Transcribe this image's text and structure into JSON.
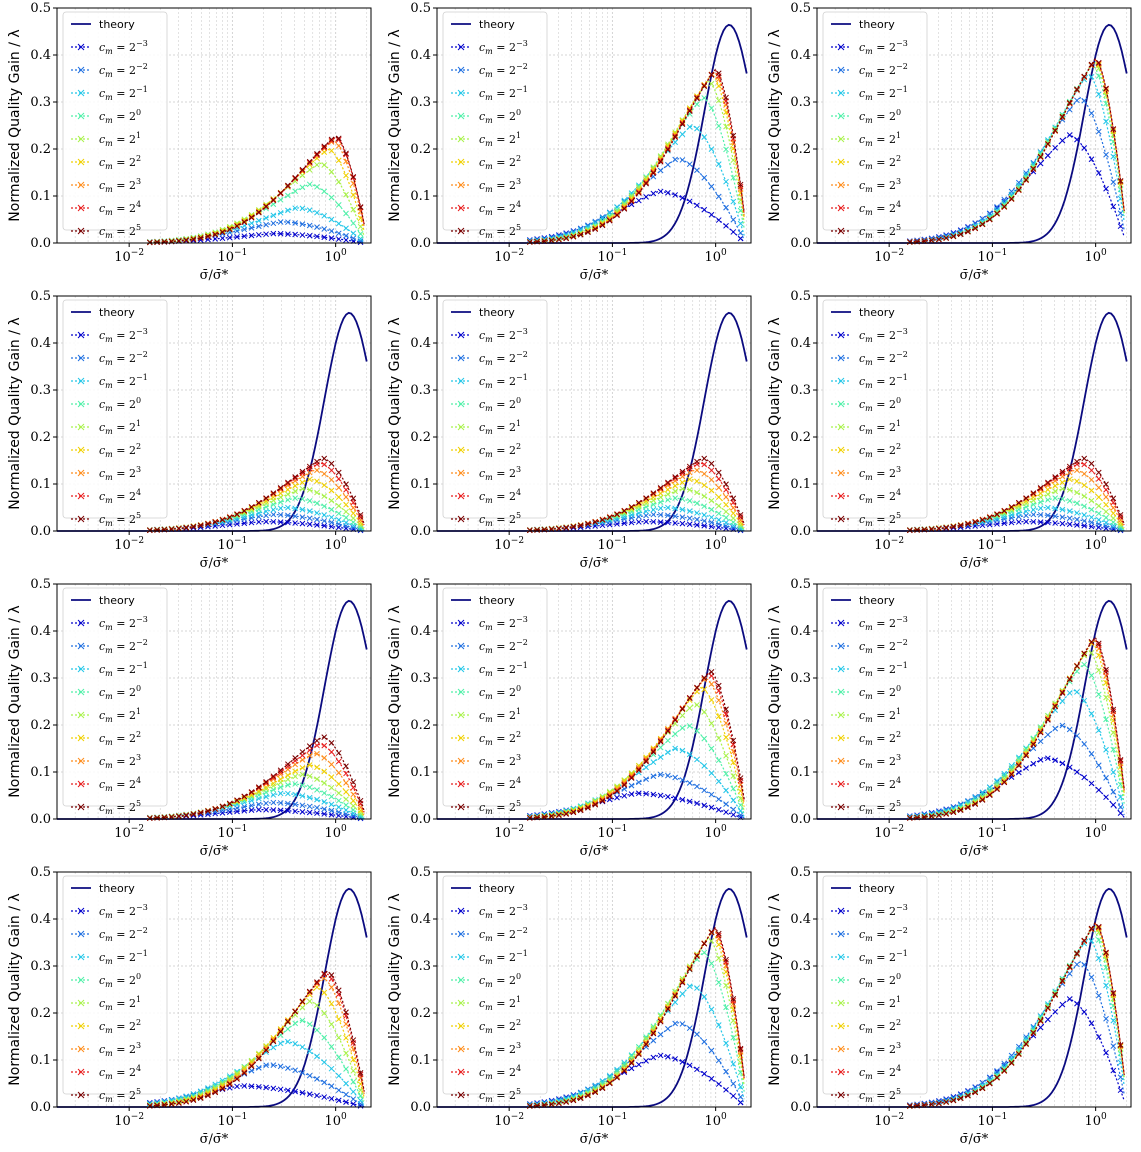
{
  "figure": {
    "ylabel": "Normalized Quality Gain / λ",
    "xlabel": "σ̄/σ̄*",
    "legend": {
      "theory_label": "theory",
      "cm_entries": [
        {
          "base": "c",
          "sub": "m",
          "eq": " = 2",
          "exp": "−3",
          "color": "#0000cc"
        },
        {
          "base": "c",
          "sub": "m",
          "eq": " = 2",
          "exp": "−2",
          "color": "#1f6fe0"
        },
        {
          "base": "c",
          "sub": "m",
          "eq": " = 2",
          "exp": "−1",
          "color": "#22c6e8"
        },
        {
          "base": "c",
          "sub": "m",
          "eq": " = 2",
          "exp": "0",
          "color": "#4ff0a8"
        },
        {
          "base": "c",
          "sub": "m",
          "eq": " = 2",
          "exp": "1",
          "color": "#a8f24a"
        },
        {
          "base": "c",
          "sub": "m",
          "eq": " = 2",
          "exp": "2",
          "color": "#f0d000"
        },
        {
          "base": "c",
          "sub": "m",
          "eq": " = 2",
          "exp": "3",
          "color": "#ff8c1a"
        },
        {
          "base": "c",
          "sub": "m",
          "eq": " = 2",
          "exp": "4",
          "color": "#e81c1c"
        },
        {
          "base": "c",
          "sub": "m",
          "eq": " = 2",
          "exp": "5",
          "color": "#7a0000"
        }
      ],
      "theory_color": "#0b0b80"
    },
    "yticks": [
      "0.0",
      "0.1",
      "0.2",
      "0.3",
      "0.4",
      "0.5"
    ],
    "xticks": [
      {
        "base": "10",
        "exp": "−2"
      },
      {
        "base": "10",
        "exp": "−1"
      },
      {
        "base": "10",
        "exp": "0"
      }
    ]
  },
  "chart_data": [
    {
      "type": "line",
      "xscale": "log",
      "xlim": [
        0.002,
        2.2
      ],
      "ylim": [
        0,
        0.5
      ],
      "grid": true,
      "legend_position": "upper-left",
      "xlabel": "σ̄/σ̄*",
      "ylabel": "Normalized Quality Gain / λ",
      "theory_visible": false,
      "series": [
        {
          "name": "c_m = 2^-3",
          "peak": 0.02,
          "peak_x": 0.25
        },
        {
          "name": "c_m = 2^-2",
          "peak": 0.045,
          "peak_x": 0.3
        },
        {
          "name": "c_m = 2^-1",
          "peak": 0.075,
          "peak_x": 0.42
        },
        {
          "name": "c_m = 2^0",
          "peak": 0.125,
          "peak_x": 0.55
        },
        {
          "name": "c_m = 2^1",
          "peak": 0.17,
          "peak_x": 0.7
        },
        {
          "name": "c_m = 2^2",
          "peak": 0.2,
          "peak_x": 0.85
        },
        {
          "name": "c_m = 2^3",
          "peak": 0.218,
          "peak_x": 0.95
        },
        {
          "name": "c_m = 2^4",
          "peak": 0.225,
          "peak_x": 1.0
        },
        {
          "name": "c_m = 2^5",
          "peak": 0.228,
          "peak_x": 1.0
        }
      ]
    },
    {
      "type": "line",
      "xscale": "log",
      "xlim": [
        0.002,
        2.2
      ],
      "ylim": [
        0,
        0.5
      ],
      "grid": true,
      "legend_position": "upper-left",
      "xlabel": "σ̄/σ̄*",
      "ylabel": "Normalized Quality Gain / λ",
      "theory_visible": true,
      "series": [
        {
          "name": "c_m = 2^-3",
          "peak": 0.11,
          "peak_x": 0.28
        },
        {
          "name": "c_m = 2^-2",
          "peak": 0.18,
          "peak_x": 0.42
        },
        {
          "name": "c_m = 2^-1",
          "peak": 0.25,
          "peak_x": 0.58
        },
        {
          "name": "c_m = 2^0",
          "peak": 0.31,
          "peak_x": 0.75
        },
        {
          "name": "c_m = 2^1",
          "peak": 0.345,
          "peak_x": 0.85
        },
        {
          "name": "c_m = 2^2",
          "peak": 0.36,
          "peak_x": 0.92
        },
        {
          "name": "c_m = 2^3",
          "peak": 0.365,
          "peak_x": 0.96
        },
        {
          "name": "c_m = 2^4",
          "peak": 0.368,
          "peak_x": 0.98
        },
        {
          "name": "c_m = 2^5",
          "peak": 0.37,
          "peak_x": 1.0
        }
      ]
    },
    {
      "type": "line",
      "xscale": "log",
      "xlim": [
        0.002,
        2.2
      ],
      "ylim": [
        0,
        0.5
      ],
      "grid": true,
      "legend_position": "upper-left",
      "xlabel": "σ̄/σ̄*",
      "ylabel": "Normalized Quality Gain / λ",
      "theory_visible": true,
      "series": [
        {
          "name": "c_m = 2^-3",
          "peak": 0.23,
          "peak_x": 0.55
        },
        {
          "name": "c_m = 2^-2",
          "peak": 0.31,
          "peak_x": 0.7
        },
        {
          "name": "c_m = 2^-1",
          "peak": 0.36,
          "peak_x": 0.85
        },
        {
          "name": "c_m = 2^0",
          "peak": 0.38,
          "peak_x": 0.93
        },
        {
          "name": "c_m = 2^1",
          "peak": 0.387,
          "peak_x": 0.97
        },
        {
          "name": "c_m = 2^2",
          "peak": 0.39,
          "peak_x": 0.99
        },
        {
          "name": "c_m = 2^3",
          "peak": 0.391,
          "peak_x": 1.0
        },
        {
          "name": "c_m = 2^4",
          "peak": 0.392,
          "peak_x": 1.0
        },
        {
          "name": "c_m = 2^5",
          "peak": 0.393,
          "peak_x": 1.0
        }
      ]
    },
    {
      "type": "line",
      "xscale": "log",
      "xlim": [
        0.002,
        2.2
      ],
      "ylim": [
        0,
        0.5
      ],
      "grid": true,
      "legend_position": "upper-left",
      "xlabel": "σ̄/σ̄*",
      "ylabel": "Normalized Quality Gain / λ",
      "theory_visible": true,
      "series": [
        {
          "name": "c_m = 2^-3",
          "peak": 0.02,
          "peak_x": 0.2
        },
        {
          "name": "c_m = 2^-2",
          "peak": 0.035,
          "peak_x": 0.25
        },
        {
          "name": "c_m = 2^-1",
          "peak": 0.05,
          "peak_x": 0.32
        },
        {
          "name": "c_m = 2^0",
          "peak": 0.07,
          "peak_x": 0.4
        },
        {
          "name": "c_m = 2^1",
          "peak": 0.09,
          "peak_x": 0.48
        },
        {
          "name": "c_m = 2^2",
          "peak": 0.11,
          "peak_x": 0.56
        },
        {
          "name": "c_m = 2^3",
          "peak": 0.13,
          "peak_x": 0.63
        },
        {
          "name": "c_m = 2^4",
          "peak": 0.145,
          "peak_x": 0.7
        },
        {
          "name": "c_m = 2^5",
          "peak": 0.155,
          "peak_x": 0.75
        }
      ]
    },
    {
      "type": "line",
      "xscale": "log",
      "xlim": [
        0.002,
        2.2
      ],
      "ylim": [
        0,
        0.5
      ],
      "grid": true,
      "legend_position": "upper-left",
      "xlabel": "σ̄/σ̄*",
      "ylabel": "Normalized Quality Gain / λ",
      "theory_visible": true,
      "series": [
        {
          "name": "c_m = 2^-3",
          "peak": 0.02,
          "peak_x": 0.2
        },
        {
          "name": "c_m = 2^-2",
          "peak": 0.035,
          "peak_x": 0.25
        },
        {
          "name": "c_m = 2^-1",
          "peak": 0.05,
          "peak_x": 0.32
        },
        {
          "name": "c_m = 2^0",
          "peak": 0.07,
          "peak_x": 0.4
        },
        {
          "name": "c_m = 2^1",
          "peak": 0.09,
          "peak_x": 0.48
        },
        {
          "name": "c_m = 2^2",
          "peak": 0.11,
          "peak_x": 0.56
        },
        {
          "name": "c_m = 2^3",
          "peak": 0.13,
          "peak_x": 0.63
        },
        {
          "name": "c_m = 2^4",
          "peak": 0.145,
          "peak_x": 0.7
        },
        {
          "name": "c_m = 2^5",
          "peak": 0.155,
          "peak_x": 0.75
        }
      ]
    },
    {
      "type": "line",
      "xscale": "log",
      "xlim": [
        0.002,
        2.2
      ],
      "ylim": [
        0,
        0.5
      ],
      "grid": true,
      "legend_position": "upper-left",
      "xlabel": "σ̄/σ̄*",
      "ylabel": "Normalized Quality Gain / λ",
      "theory_visible": true,
      "series": [
        {
          "name": "c_m = 2^-3",
          "peak": 0.02,
          "peak_x": 0.2
        },
        {
          "name": "c_m = 2^-2",
          "peak": 0.035,
          "peak_x": 0.25
        },
        {
          "name": "c_m = 2^-1",
          "peak": 0.05,
          "peak_x": 0.32
        },
        {
          "name": "c_m = 2^0",
          "peak": 0.07,
          "peak_x": 0.4
        },
        {
          "name": "c_m = 2^1",
          "peak": 0.09,
          "peak_x": 0.48
        },
        {
          "name": "c_m = 2^2",
          "peak": 0.11,
          "peak_x": 0.56
        },
        {
          "name": "c_m = 2^3",
          "peak": 0.13,
          "peak_x": 0.63
        },
        {
          "name": "c_m = 2^4",
          "peak": 0.145,
          "peak_x": 0.7
        },
        {
          "name": "c_m = 2^5",
          "peak": 0.155,
          "peak_x": 0.75
        }
      ]
    },
    {
      "type": "line",
      "xscale": "log",
      "xlim": [
        0.002,
        2.2
      ],
      "ylim": [
        0,
        0.5
      ],
      "grid": true,
      "legend_position": "upper-left",
      "xlabel": "σ̄/σ̄*",
      "ylabel": "Normalized Quality Gain / λ",
      "theory_visible": true,
      "series": [
        {
          "name": "c_m = 2^-3",
          "peak": 0.02,
          "peak_x": 0.18
        },
        {
          "name": "c_m = 2^-2",
          "peak": 0.035,
          "peak_x": 0.24
        },
        {
          "name": "c_m = 2^-1",
          "peak": 0.055,
          "peak_x": 0.3
        },
        {
          "name": "c_m = 2^0",
          "peak": 0.075,
          "peak_x": 0.38
        },
        {
          "name": "c_m = 2^1",
          "peak": 0.095,
          "peak_x": 0.46
        },
        {
          "name": "c_m = 2^2",
          "peak": 0.115,
          "peak_x": 0.55
        },
        {
          "name": "c_m = 2^3",
          "peak": 0.14,
          "peak_x": 0.62
        },
        {
          "name": "c_m = 2^4",
          "peak": 0.16,
          "peak_x": 0.7
        },
        {
          "name": "c_m = 2^5",
          "peak": 0.175,
          "peak_x": 0.75
        }
      ]
    },
    {
      "type": "line",
      "xscale": "log",
      "xlim": [
        0.002,
        2.2
      ],
      "ylim": [
        0,
        0.5
      ],
      "grid": true,
      "legend_position": "upper-left",
      "xlabel": "σ̄/σ̄*",
      "ylabel": "Normalized Quality Gain / λ",
      "theory_visible": true,
      "series": [
        {
          "name": "c_m = 2^-3",
          "peak": 0.055,
          "peak_x": 0.17
        },
        {
          "name": "c_m = 2^-2",
          "peak": 0.095,
          "peak_x": 0.28
        },
        {
          "name": "c_m = 2^-1",
          "peak": 0.15,
          "peak_x": 0.4
        },
        {
          "name": "c_m = 2^0",
          "peak": 0.2,
          "peak_x": 0.52
        },
        {
          "name": "c_m = 2^1",
          "peak": 0.245,
          "peak_x": 0.62
        },
        {
          "name": "c_m = 2^2",
          "peak": 0.28,
          "peak_x": 0.72
        },
        {
          "name": "c_m = 2^3",
          "peak": 0.3,
          "peak_x": 0.8
        },
        {
          "name": "c_m = 2^4",
          "peak": 0.31,
          "peak_x": 0.85
        },
        {
          "name": "c_m = 2^5",
          "peak": 0.315,
          "peak_x": 0.88
        }
      ]
    },
    {
      "type": "line",
      "xscale": "log",
      "xlim": [
        0.002,
        2.2
      ],
      "ylim": [
        0,
        0.5
      ],
      "grid": true,
      "legend_position": "upper-left",
      "xlabel": "σ̄/σ̄*",
      "ylabel": "Normalized Quality Gain / λ",
      "theory_visible": true,
      "series": [
        {
          "name": "c_m = 2^-3",
          "peak": 0.13,
          "peak_x": 0.32
        },
        {
          "name": "c_m = 2^-2",
          "peak": 0.2,
          "peak_x": 0.45
        },
        {
          "name": "c_m = 2^-1",
          "peak": 0.275,
          "peak_x": 0.6
        },
        {
          "name": "c_m = 2^0",
          "peak": 0.33,
          "peak_x": 0.75
        },
        {
          "name": "c_m = 2^1",
          "peak": 0.36,
          "peak_x": 0.85
        },
        {
          "name": "c_m = 2^2",
          "peak": 0.375,
          "peak_x": 0.92
        },
        {
          "name": "c_m = 2^3",
          "peak": 0.382,
          "peak_x": 0.95
        },
        {
          "name": "c_m = 2^4",
          "peak": 0.385,
          "peak_x": 0.97
        },
        {
          "name": "c_m = 2^5",
          "peak": 0.387,
          "peak_x": 0.98
        }
      ]
    },
    {
      "type": "line",
      "xscale": "log",
      "xlim": [
        0.002,
        2.2
      ],
      "ylim": [
        0,
        0.5
      ],
      "grid": true,
      "legend_position": "upper-left",
      "xlabel": "σ̄/σ̄*",
      "ylabel": "Normalized Quality Gain / λ",
      "theory_visible": true,
      "series": [
        {
          "name": "c_m = 2^-3",
          "peak": 0.045,
          "peak_x": 0.12
        },
        {
          "name": "c_m = 2^-2",
          "peak": 0.09,
          "peak_x": 0.22
        },
        {
          "name": "c_m = 2^-1",
          "peak": 0.14,
          "peak_x": 0.32
        },
        {
          "name": "c_m = 2^0",
          "peak": 0.185,
          "peak_x": 0.45
        },
        {
          "name": "c_m = 2^1",
          "peak": 0.225,
          "peak_x": 0.56
        },
        {
          "name": "c_m = 2^2",
          "peak": 0.255,
          "peak_x": 0.66
        },
        {
          "name": "c_m = 2^3",
          "peak": 0.275,
          "peak_x": 0.75
        },
        {
          "name": "c_m = 2^4",
          "peak": 0.285,
          "peak_x": 0.8
        },
        {
          "name": "c_m = 2^5",
          "peak": 0.29,
          "peak_x": 0.82
        }
      ]
    },
    {
      "type": "line",
      "xscale": "log",
      "xlim": [
        0.002,
        2.2
      ],
      "ylim": [
        0,
        0.5
      ],
      "grid": true,
      "legend_position": "upper-left",
      "xlabel": "σ̄/σ̄*",
      "ylabel": "Normalized Quality Gain / λ",
      "theory_visible": true,
      "series": [
        {
          "name": "c_m = 2^-3",
          "peak": 0.11,
          "peak_x": 0.28
        },
        {
          "name": "c_m = 2^-2",
          "peak": 0.18,
          "peak_x": 0.42
        },
        {
          "name": "c_m = 2^-1",
          "peak": 0.26,
          "peak_x": 0.58
        },
        {
          "name": "c_m = 2^0",
          "peak": 0.33,
          "peak_x": 0.75
        },
        {
          "name": "c_m = 2^1",
          "peak": 0.36,
          "peak_x": 0.85
        },
        {
          "name": "c_m = 2^2",
          "peak": 0.372,
          "peak_x": 0.92
        },
        {
          "name": "c_m = 2^3",
          "peak": 0.378,
          "peak_x": 0.95
        },
        {
          "name": "c_m = 2^4",
          "peak": 0.38,
          "peak_x": 0.97
        },
        {
          "name": "c_m = 2^5",
          "peak": 0.382,
          "peak_x": 0.98
        }
      ]
    },
    {
      "type": "line",
      "xscale": "log",
      "xlim": [
        0.002,
        2.2
      ],
      "ylim": [
        0,
        0.5
      ],
      "grid": true,
      "legend_position": "upper-left",
      "xlabel": "σ̄/σ̄*",
      "ylabel": "Normalized Quality Gain / λ",
      "theory_visible": true,
      "series": [
        {
          "name": "c_m = 2^-3",
          "peak": 0.23,
          "peak_x": 0.55
        },
        {
          "name": "c_m = 2^-2",
          "peak": 0.31,
          "peak_x": 0.7
        },
        {
          "name": "c_m = 2^-1",
          "peak": 0.36,
          "peak_x": 0.85
        },
        {
          "name": "c_m = 2^0",
          "peak": 0.38,
          "peak_x": 0.93
        },
        {
          "name": "c_m = 2^1",
          "peak": 0.387,
          "peak_x": 0.97
        },
        {
          "name": "c_m = 2^2",
          "peak": 0.39,
          "peak_x": 0.99
        },
        {
          "name": "c_m = 2^3",
          "peak": 0.391,
          "peak_x": 1.0
        },
        {
          "name": "c_m = 2^4",
          "peak": 0.392,
          "peak_x": 1.0
        },
        {
          "name": "c_m = 2^5",
          "peak": 0.393,
          "peak_x": 1.0
        }
      ]
    }
  ]
}
